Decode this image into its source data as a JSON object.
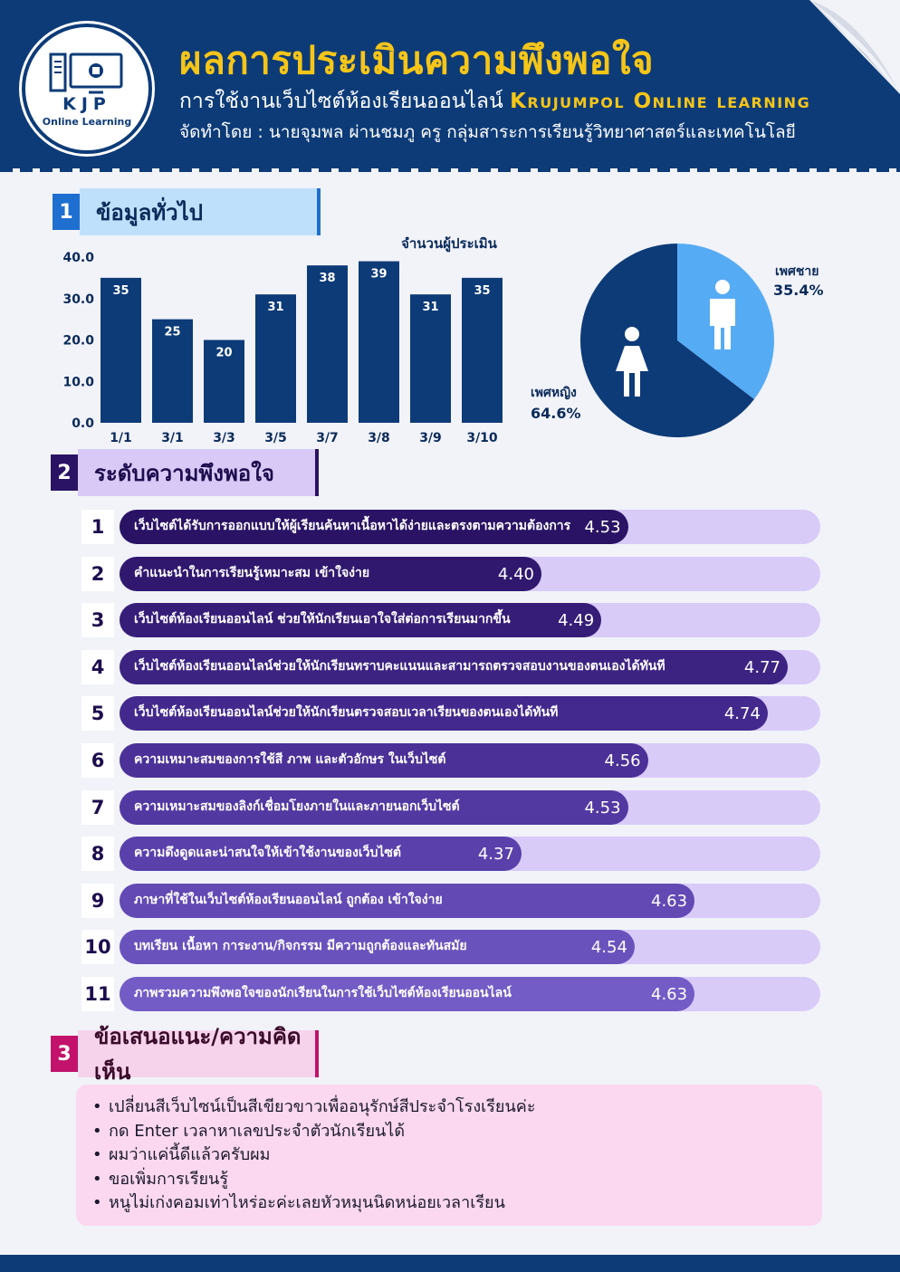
{
  "header": {
    "title": "ผลการประเมินความพึงพอใจ",
    "subtitle_th": "การใช้งานเว็บไซต์ห้องเรียนออนไลน์",
    "subtitle_en": "Krujumpol Online learning",
    "byline": "จัดทำโดย : นายจุมพล ผ่านชมภู ครู กลุ่มสาระการเรียนรู้วิทยาศาสตร์และเทคโนโลยี",
    "logo_text": "KJP",
    "logo_sub": "Online Learning"
  },
  "sections": {
    "s1": {
      "num": "1",
      "label": "ข้อมูลทั่วไป"
    },
    "s2": {
      "num": "2",
      "label": "ระดับความพึงพอใจ"
    },
    "s3": {
      "num": "3",
      "label": "ข้อเสนอแนะ/ความคิดเห็น"
    }
  },
  "chart_data": [
    {
      "type": "bar",
      "title": "จำนวนผู้ประเมิน",
      "categories": [
        "1/1",
        "3/1",
        "3/3",
        "3/5",
        "3/7",
        "3/8",
        "3/9",
        "3/10"
      ],
      "values": [
        35,
        25,
        20,
        31,
        38,
        39,
        31,
        35
      ],
      "ylim": [
        0,
        40
      ],
      "yticks": [
        "0.0",
        "10.0",
        "20.0",
        "30.0",
        "40.0"
      ],
      "grid": false,
      "color": "#0d3b78"
    },
    {
      "type": "pie",
      "slices": [
        {
          "label": "เพศชาย",
          "pct_label": "35.4%",
          "value": 35.4,
          "color": "#56abf5",
          "icon": "male-icon"
        },
        {
          "label": "เพศหญิง",
          "pct_label": "64.6%",
          "value": 64.6,
          "color": "#0d3b78",
          "icon": "female-icon"
        }
      ]
    },
    {
      "type": "bar",
      "orientation": "horizontal",
      "xlim": [
        0,
        5
      ],
      "items": [
        {
          "num": "1",
          "label": "เว็บไซต์ได้รับการออกแบบให้ผู้เรียนค้นหาเนื้อหาได้ง่ายและตรงตามความต้องการ",
          "value": 4.53,
          "value_label": "4.53",
          "color": "#2a1364"
        },
        {
          "num": "2",
          "label": "คำแนะนำในการเรียนรู้เหมาะสม เข้าใจง่าย",
          "value": 4.4,
          "value_label": "4.40",
          "color": "#30186e"
        },
        {
          "num": "3",
          "label": "เว็บไซต์ห้องเรียนออนไลน์ ช่วยให้นักเรียนเอาใจใส่ต่อการเรียนมากขึ้น",
          "value": 4.49,
          "value_label": "4.49",
          "color": "#361d78"
        },
        {
          "num": "4",
          "label": "เว็บไซต์ห้องเรียนออนไลน์ช่วยให้นักเรียนทราบคะแนนและสามารถตรวจสอบงานของตนเองได้ทันที",
          "value": 4.77,
          "value_label": "4.77",
          "color": "#3c2382"
        },
        {
          "num": "5",
          "label": "เว็บไซต์ห้องเรียนออนไลน์ช่วยให้นักเรียนตรวจสอบเวลาเรียนของตนเองได้ทันที",
          "value": 4.74,
          "value_label": "4.74",
          "color": "#43298d"
        },
        {
          "num": "6",
          "label": "ความเหมาะสมของการใช้สี ภาพ และตัวอักษร ในเว็บไซต์",
          "value": 4.56,
          "value_label": "4.56",
          "color": "#4a3097"
        },
        {
          "num": "7",
          "label": "ความเหมาะสมของลิงก์เชื่อมโยงภายในและภายนอกเว็บไซต์",
          "value": 4.53,
          "value_label": "4.53",
          "color": "#5238a1"
        },
        {
          "num": "8",
          "label": "ความดึงดูดและน่าสนใจให้เข้าใช้งานของเว็บไซต์",
          "value": 4.37,
          "value_label": "4.37",
          "color": "#5a40ab"
        },
        {
          "num": "9",
          "label": "ภาษาที่ใช้ในเว็บไซต์ห้องเรียนออนไลน์ ถูกต้อง เข้าใจง่าย",
          "value": 4.63,
          "value_label": "4.63",
          "color": "#6249b4"
        },
        {
          "num": "10",
          "label": "บทเรียน เนื้อหา การะงาน/กิจกรรม มีความถูกต้องและทันสมัย",
          "value": 4.54,
          "value_label": "4.54",
          "color": "#6a52bd"
        },
        {
          "num": "11",
          "label": "ภาพรวมความพึงพอใจของนักเรียนในการใช้เว็บไซต์ห้องเรียนออนไลน์",
          "value": 4.63,
          "value_label": "4.63",
          "color": "#735cc6"
        }
      ]
    }
  ],
  "comments": [
    "เปลี่ยนสีเว็บไซน์เป็นสีเขียวขาวเพื่ออนุรักษ์สีประจำโรงเรียนค่ะ",
    "กด Enter เวลาหาเลขประจำตัวนักเรียนได้",
    "ผมว่าแค่นี้ดีแล้วครับผม",
    "ขอเพิ่มการเรียนรู้",
    "หนูไม่เก่งคอมเท่าไหร่อะค่ะเลยหัวหมุนนิดหน่อยเวลาเรียน"
  ]
}
